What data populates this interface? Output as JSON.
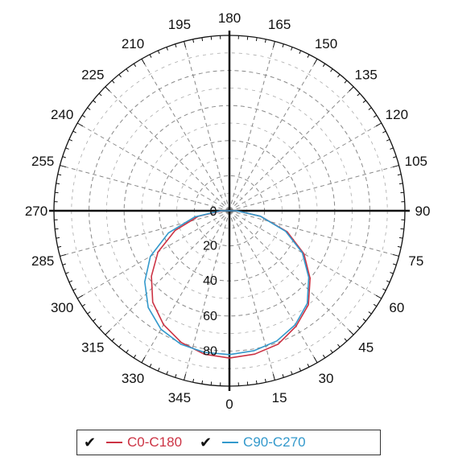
{
  "chart_data": {
    "type": "polar-line",
    "title": "",
    "angular_ticks": [
      0,
      15,
      30,
      45,
      60,
      75,
      90,
      105,
      120,
      135,
      150,
      165,
      180,
      195,
      210,
      225,
      240,
      255,
      270,
      285,
      300,
      315,
      330,
      345
    ],
    "radial_ticks": [
      20,
      40,
      60,
      80
    ],
    "radial_tick_labels": [
      "20",
      "40",
      "60",
      "80"
    ],
    "center_label": "0",
    "rlim": [
      0,
      100
    ],
    "grid": true,
    "angle_zero": "bottom",
    "angle_direction": "counterclockwise",
    "series": [
      {
        "name": "C0-C180",
        "color": "#cc3344",
        "checked": true,
        "angles": [
          0,
          10,
          20,
          30,
          40,
          50,
          60,
          70,
          80,
          90,
          270,
          280,
          290,
          300,
          310,
          320,
          330,
          340,
          350,
          360
        ],
        "values": [
          84,
          83,
          81,
          76,
          70,
          60,
          49,
          35,
          18,
          4,
          4,
          18,
          33,
          47,
          58,
          68,
          75,
          80,
          83,
          84
        ]
      },
      {
        "name": "C90-C270",
        "color": "#3399cc",
        "checked": true,
        "angles": [
          0,
          10,
          20,
          30,
          40,
          50,
          60,
          70,
          80,
          90,
          270,
          280,
          290,
          300,
          310,
          320,
          330,
          340,
          350,
          360
        ],
        "values": [
          82,
          81,
          79,
          75,
          69,
          59,
          48,
          34,
          18,
          4,
          5,
          20,
          37,
          52,
          63,
          72,
          78,
          81,
          82,
          82
        ]
      }
    ]
  },
  "legend": {
    "checkmark": "✔",
    "items": [
      {
        "label": "C0-C180",
        "color": "#cc3344"
      },
      {
        "label": "C90-C270",
        "color": "#3399cc"
      }
    ]
  }
}
